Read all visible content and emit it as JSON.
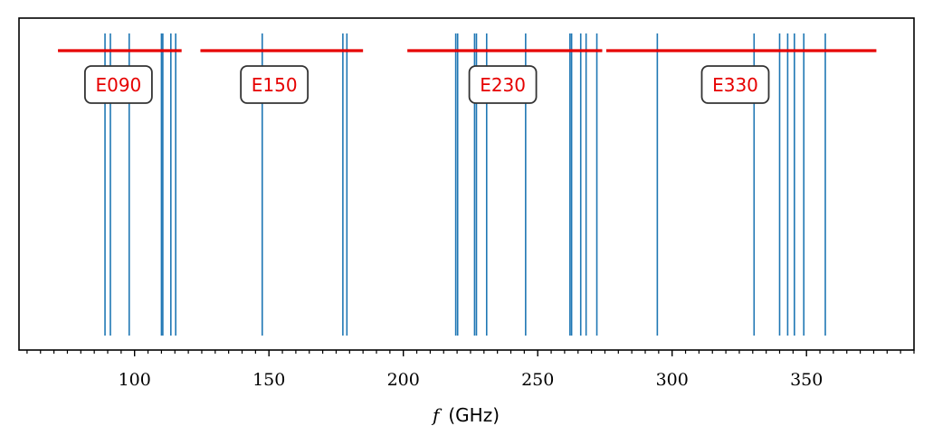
{
  "chart_data": {
    "type": "line",
    "xlabel_symbol": "f",
    "xlabel_unit": "(GHz)",
    "xlim": [
      57,
      390
    ],
    "x_ticks": [
      100,
      150,
      200,
      250,
      300,
      350
    ],
    "x_tick_labels": [
      "100",
      "150",
      "200",
      "250",
      "300",
      "350"
    ],
    "x_minor_step": 5,
    "y_ticks_visible": false,
    "grid": false,
    "line_color": "#1f77b4",
    "band_color": "#e60000",
    "lines": [
      89,
      91,
      98,
      110,
      110.5,
      113.5,
      115.3,
      147.5,
      177.5,
      179,
      219.5,
      220.2,
      226.5,
      227.2,
      231,
      245.5,
      262,
      262.6,
      266,
      268,
      272,
      294.5,
      330.5,
      340,
      343,
      345.5,
      349,
      357
    ],
    "bands": [
      {
        "name": "E090",
        "from": 71.5,
        "to": 117.5,
        "label_x": 94
      },
      {
        "name": "E150",
        "from": 124.5,
        "to": 185,
        "label_x": 152
      },
      {
        "name": "E230",
        "from": 201.5,
        "to": 274,
        "label_x": 237
      },
      {
        "name": "E330",
        "from": 275.5,
        "to": 376,
        "label_x": 323.5
      }
    ]
  }
}
